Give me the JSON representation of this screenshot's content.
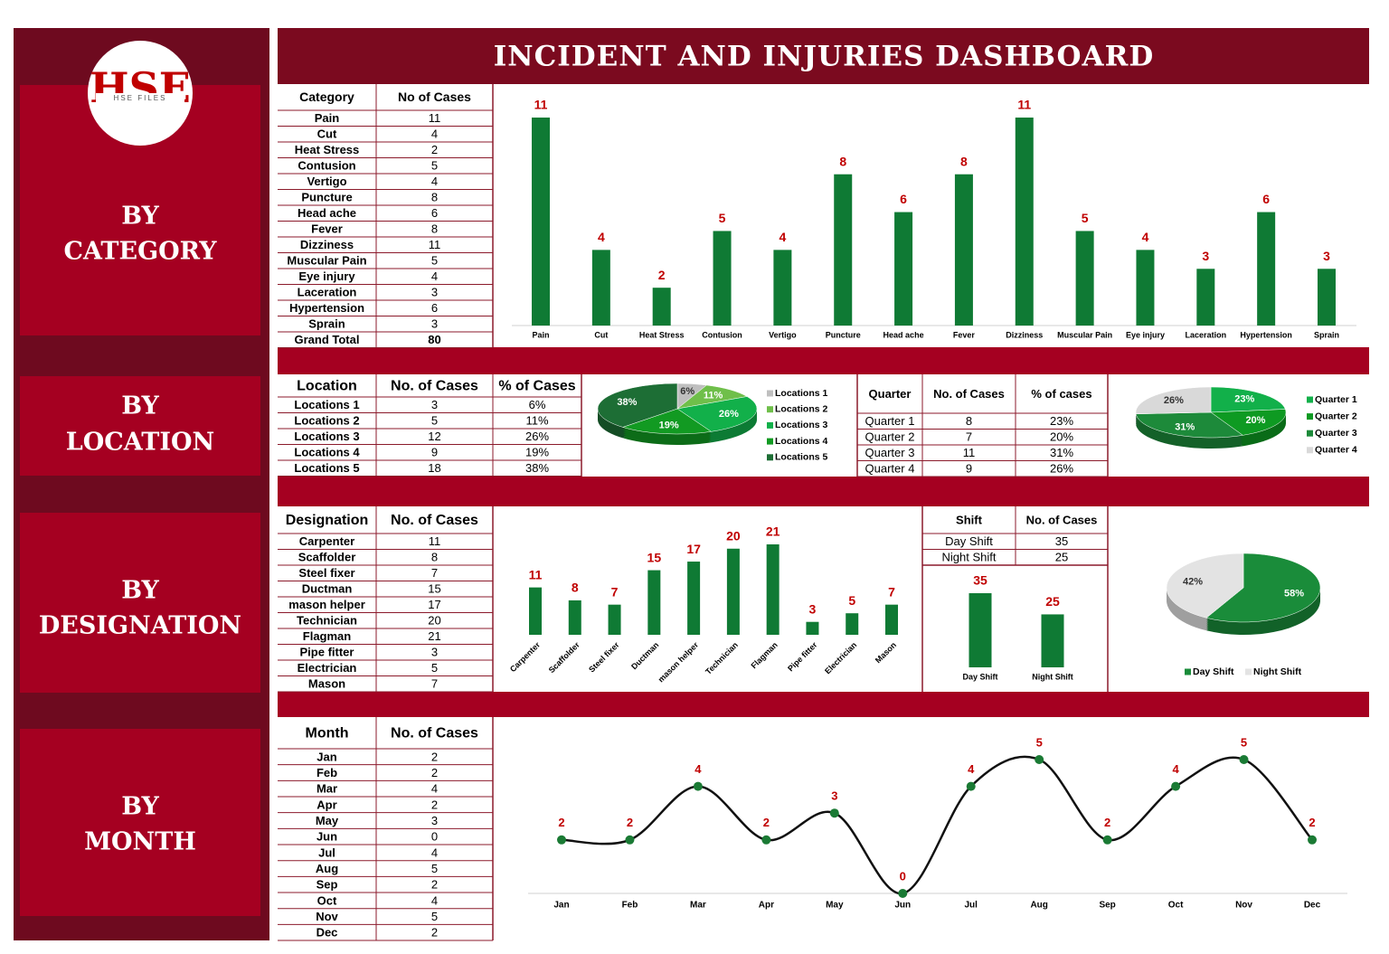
{
  "title": "INCIDENT AND INJURIES DASHBOARD",
  "logo": {
    "text": "HSE",
    "subtext": "HSE FILES"
  },
  "sidebar": [
    [
      "BY",
      "CATEGORY"
    ],
    [
      "BY",
      "LOCATION"
    ],
    [
      "BY",
      "DESIGNATION"
    ],
    [
      "BY",
      "MONTH"
    ]
  ],
  "tables": {
    "category": {
      "headers": [
        "Category",
        "No of Cases"
      ],
      "total_label": "Grand Total",
      "total": 80
    },
    "location": {
      "headers": [
        "Location",
        "No. of Cases",
        "% of Cases"
      ]
    },
    "quarter": {
      "headers": [
        "Quarter",
        "No. of Cases",
        "% of cases"
      ]
    },
    "designation": {
      "headers": [
        "Designation",
        "No. of Cases"
      ]
    },
    "shift": {
      "headers": [
        "Shift",
        "No. of Cases"
      ]
    },
    "month": {
      "headers": [
        "Month",
        "No. of Cases"
      ]
    }
  },
  "chart_data": [
    {
      "type": "bar",
      "color": "#0f7a34",
      "categories": [
        "Pain",
        "Cut",
        "Heat Stress",
        "Contusion",
        "Vertigo",
        "Puncture",
        "Head ache",
        "Fever",
        "Dizziness",
        "Muscular Pain",
        "Eye injury",
        "Laceration",
        "Hypertension",
        "Sprain"
      ],
      "values": [
        11,
        4,
        2,
        5,
        4,
        8,
        6,
        8,
        11,
        5,
        4,
        3,
        6,
        3
      ]
    },
    {
      "type": "pie",
      "legend": "right",
      "categories": [
        "Locations 1",
        "Locations 2",
        "Locations 3",
        "Locations 4",
        "Locations 5"
      ],
      "counts": [
        3,
        5,
        12,
        9,
        18
      ],
      "values": [
        6,
        11,
        26,
        19,
        38
      ],
      "value_labels": [
        "6%",
        "11%",
        "26%",
        "19%",
        "38%"
      ],
      "colors": [
        "#bfbfbf",
        "#6fbf4a",
        "#12b04a",
        "#129a22",
        "#1d6e35"
      ]
    },
    {
      "type": "pie",
      "legend": "right",
      "categories": [
        "Quarter 1",
        "Quarter 2",
        "Quarter 3",
        "Quarter 4"
      ],
      "counts": [
        8,
        7,
        11,
        9
      ],
      "values": [
        23,
        20,
        31,
        26
      ],
      "value_labels": [
        "23%",
        "20%",
        "31%",
        "26%"
      ],
      "colors": [
        "#12b04a",
        "#0e9a22",
        "#1d8a3a",
        "#d9d9d9"
      ]
    },
    {
      "type": "bar",
      "color": "#0f7a34",
      "rotate_labels": true,
      "categories": [
        "Carpenter",
        "Scaffolder",
        "Steel fixer",
        "Ductman",
        "mason helper",
        "Technician",
        "Flagman",
        "Pipe fitter",
        "Electrician",
        "Mason"
      ],
      "values": [
        11,
        8,
        7,
        15,
        17,
        20,
        21,
        3,
        5,
        7
      ]
    },
    {
      "type": "bar",
      "color": "#0f7a34",
      "categories": [
        "Day Shift",
        "Night Shift"
      ],
      "values": [
        35,
        25
      ]
    },
    {
      "type": "pie",
      "legend": "bottom",
      "categories": [
        "Day Shift",
        "Night Shift"
      ],
      "values": [
        58,
        42
      ],
      "value_labels": [
        "58%",
        "42%"
      ],
      "colors": [
        "#1a8c3a",
        "#e3e3e3"
      ]
    },
    {
      "type": "line",
      "color": "#111111",
      "marker_color": "#1a7a34",
      "categories": [
        "Jan",
        "Feb",
        "Mar",
        "Apr",
        "May",
        "Jun",
        "Jul",
        "Aug",
        "Sep",
        "Oct",
        "Nov",
        "Dec"
      ],
      "values": [
        2,
        2,
        4,
        2,
        3,
        0,
        4,
        5,
        2,
        4,
        5,
        2
      ]
    }
  ]
}
